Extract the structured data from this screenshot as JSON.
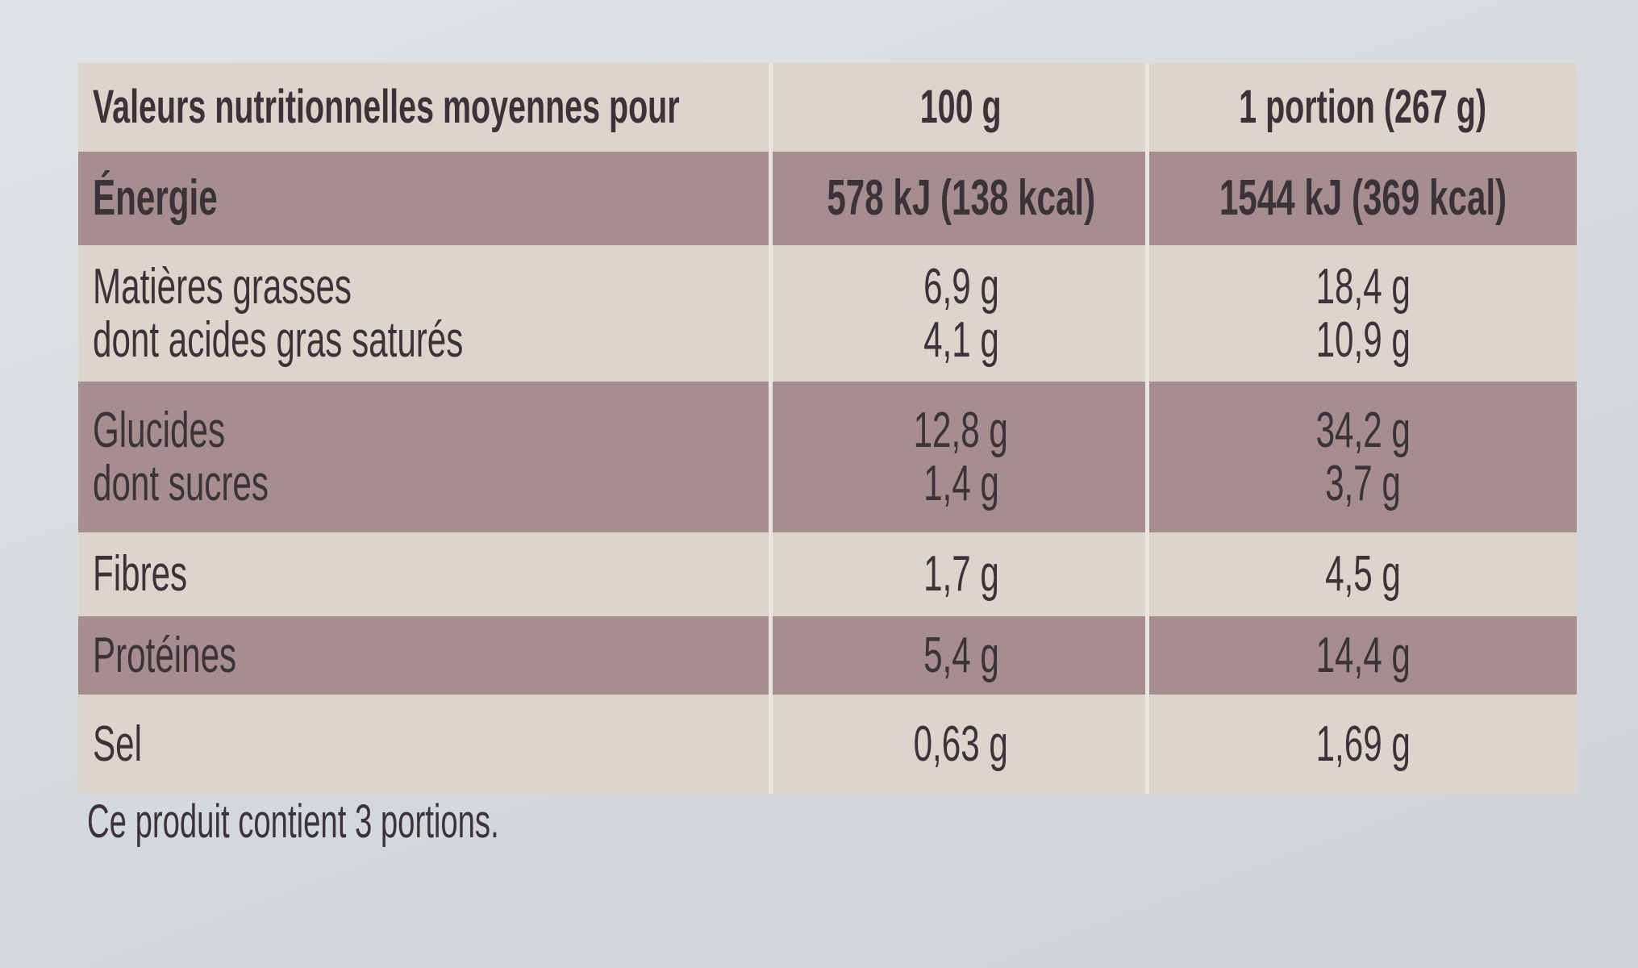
{
  "table": {
    "header": [
      "Valeurs nutritionnelles moyennes pour",
      "100 g",
      "1 portion (267 g)"
    ],
    "rows": [
      [
        [
          "Énergie"
        ],
        [
          "578 kJ (138 kcal)"
        ],
        [
          "1544 kJ (369 kcal)"
        ]
      ],
      [
        [
          "Matières grasses",
          "dont acides gras saturés"
        ],
        [
          "6,9 g",
          "4,1 g"
        ],
        [
          "18,4 g",
          "10,9 g"
        ]
      ],
      [
        [
          "Glucides",
          "dont sucres"
        ],
        [
          "12,8 g",
          "1,4 g"
        ],
        [
          "34,2 g",
          "3,7 g"
        ]
      ],
      [
        [
          "Fibres"
        ],
        [
          "1,7 g"
        ],
        [
          "4,5 g"
        ]
      ],
      [
        [
          "Protéines"
        ],
        [
          "5,4 g"
        ],
        [
          "14,4 g"
        ]
      ],
      [
        [
          "Sel"
        ],
        [
          "0,63 g"
        ],
        [
          "1,69 g"
        ]
      ]
    ],
    "footnote": "Ce produit contient 3 portions."
  }
}
